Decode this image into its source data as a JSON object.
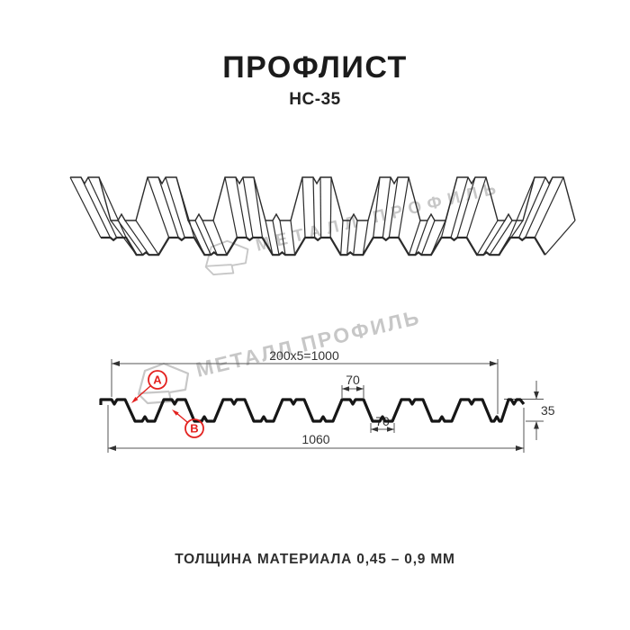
{
  "header": {
    "title": "ПРОФЛИСТ",
    "subtitle": "НС-35"
  },
  "footer": {
    "thickness_note": "ТОЛЩИНА МАТЕРИАЛА 0,45 – 0,9 ММ"
  },
  "watermark": {
    "brand": "МЕТАЛЛ ПРОФИЛЬ"
  },
  "drawing": {
    "dimensions": {
      "working_width": "200x5=1000",
      "crest_width": "70",
      "valley_width": "70",
      "profile_height": "35",
      "overall_width": "1060"
    },
    "labels": {
      "side_a": "А",
      "side_b": "В"
    },
    "colors": {
      "accent_red": "#e3211f",
      "watermark_gray": "#c7c7c7",
      "profile_black": "#161616",
      "dim_gray": "#555555"
    }
  }
}
